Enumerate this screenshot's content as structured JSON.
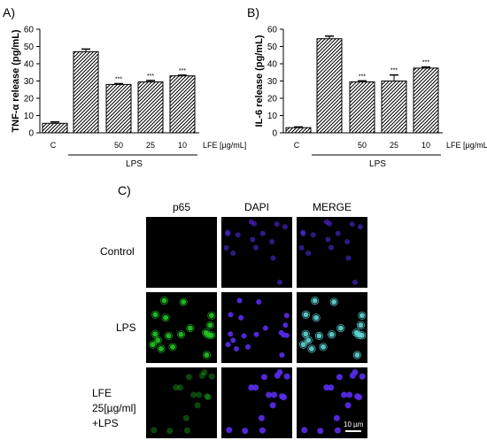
{
  "panels": {
    "a_letter": "A)",
    "b_letter": "B)",
    "c_letter": "C)"
  },
  "chart_data": [
    {
      "type": "bar",
      "panel": "A)",
      "categories": [
        "C",
        "",
        "50",
        "25",
        "10"
      ],
      "values": [
        5.5,
        47,
        28,
        29.5,
        33
      ],
      "errors": [
        0.8,
        1.5,
        0.5,
        0.8,
        0.4
      ],
      "significance": [
        "",
        "",
        "***",
        "***",
        "***"
      ],
      "xlabel": "LFE [µg/mL]",
      "group_label": "LPS",
      "ylabel": "TNF-α release (pg/mL)",
      "ylim": [
        0,
        60
      ],
      "yticks": [
        "0",
        "10",
        "20",
        "30",
        "40",
        "50",
        "60"
      ],
      "pattern": "diagonal-hatch"
    },
    {
      "type": "bar",
      "panel": "B)",
      "categories": [
        "C",
        "",
        "50",
        "25",
        "10"
      ],
      "values": [
        3,
        54.5,
        29.5,
        30,
        37.5
      ],
      "errors": [
        0.4,
        1.5,
        0.6,
        3.5,
        0.6
      ],
      "significance": [
        "",
        "",
        "***",
        "***",
        "***"
      ],
      "xlabel": "LFE [µg/mL]",
      "group_label": "LPS",
      "ylabel": "IL-6 release (pg/mL)",
      "ylim": [
        0,
        60
      ],
      "yticks": [
        "0",
        "10",
        "20",
        "30",
        "40",
        "50",
        "60"
      ],
      "pattern": "diagonal-hatch"
    }
  ],
  "micrographs": {
    "columns": [
      "p65",
      "DAPI",
      "MERGE"
    ],
    "rows": [
      {
        "label": [
          "Control"
        ]
      },
      {
        "label": [
          "LPS"
        ]
      },
      {
        "label": [
          "LFE",
          "25[µg/ml]",
          "+LPS"
        ]
      }
    ],
    "scale_bar": "10 µm",
    "colors": {
      "green": "#22c822",
      "blue": "#5a2cf0",
      "cyan": "#5fd8d8",
      "background": "#000000"
    }
  }
}
